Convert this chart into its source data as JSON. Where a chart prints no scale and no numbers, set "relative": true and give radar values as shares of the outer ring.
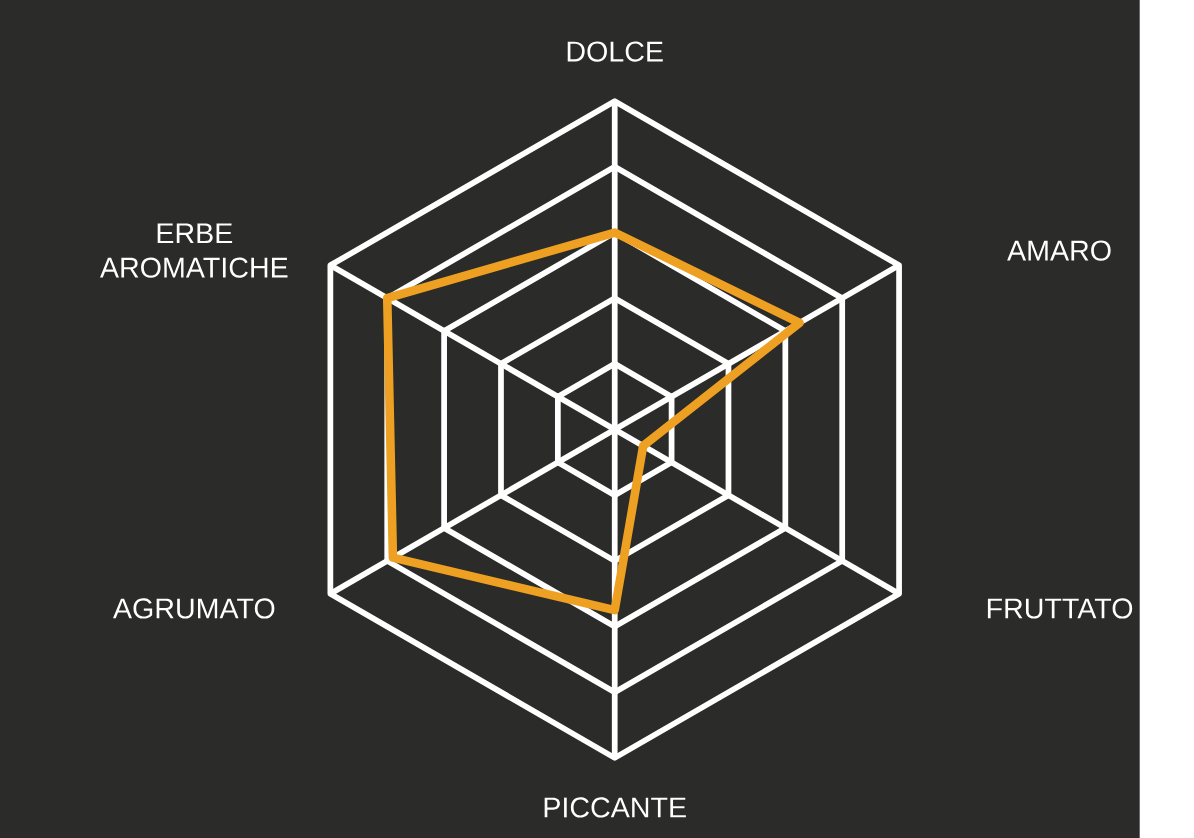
{
  "chart_data": {
    "type": "radar",
    "relative": true,
    "categories": [
      "DOLCE",
      "AMARO",
      "FRUTTATO",
      "PICCANTE",
      "AGRUMATO",
      "ERBE AROMATICHE"
    ],
    "series": [
      {
        "color": "#eda021",
        "values": [
          0.6,
          0.65,
          0.1,
          0.55,
          0.78,
          0.8
        ]
      }
    ]
  }
}
